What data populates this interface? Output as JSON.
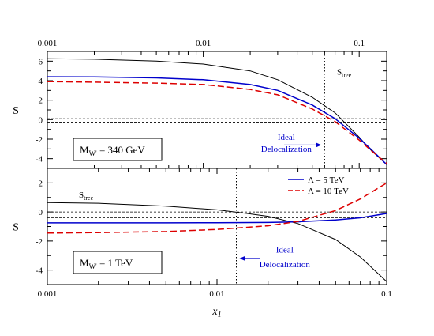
{
  "chart_data": [
    {
      "type": "line",
      "x_scale": "log",
      "xlim": [
        0.001,
        0.15
      ],
      "ylim": [
        -5,
        7
      ],
      "ylabel": "S",
      "xtick_labels": [
        "0.001",
        "0.01",
        "0.1"
      ],
      "ytick_labels": [
        "6",
        "4",
        "2",
        "0",
        "-2",
        "-4"
      ],
      "box_label": {
        "prefix": "M",
        "sub": "W'",
        "suffix": " = 340 GeV"
      },
      "curve_label": {
        "main": "S",
        "sub": "tree"
      },
      "annotation": [
        "Ideal",
        "Delocalization"
      ],
      "ideal_x": 0.06,
      "reference_lines_y": [
        0.1,
        -0.25
      ],
      "series": [
        {
          "x": [
            0.001,
            0.002,
            0.005,
            0.01,
            0.02,
            0.03,
            0.05,
            0.07,
            0.1,
            0.12,
            0.15
          ],
          "y": [
            6.25,
            6.2,
            6.0,
            5.7,
            5.0,
            4.1,
            2.3,
            0.7,
            -1.8,
            -3.2,
            -4.6
          ],
          "color": "#000000",
          "dash": "solid",
          "width": 1
        },
        {
          "x": [
            0.001,
            0.002,
            0.005,
            0.01,
            0.02,
            0.03,
            0.05,
            0.07,
            0.1,
            0.12,
            0.15
          ],
          "y": [
            4.4,
            4.38,
            4.28,
            4.1,
            3.6,
            3.0,
            1.5,
            0.1,
            -1.9,
            -3.1,
            -4.6
          ],
          "color": "#0000cc",
          "dash": "solid",
          "width": 1.5
        },
        {
          "x": [
            0.001,
            0.002,
            0.005,
            0.01,
            0.02,
            0.03,
            0.05,
            0.07,
            0.1,
            0.12,
            0.15
          ],
          "y": [
            3.9,
            3.85,
            3.75,
            3.6,
            3.1,
            2.55,
            1.1,
            -0.2,
            -2.1,
            -3.2,
            -4.5
          ],
          "color": "#dd0000",
          "dash": "dashed",
          "width": 1.5
        }
      ]
    },
    {
      "type": "line",
      "x_scale": "log",
      "xlim": [
        0.001,
        0.1
      ],
      "ylim": [
        -5,
        3
      ],
      "xlabel": {
        "main": "x",
        "sub": "1"
      },
      "ylabel": "S",
      "xtick_labels": [
        "0.001",
        "0.01",
        "0.1"
      ],
      "ytick_labels": [
        "2",
        "0",
        "-2",
        "-4"
      ],
      "box_label": {
        "prefix": "M",
        "sub": "W'",
        "suffix": " = 1 TeV"
      },
      "curve_label": {
        "main": "S",
        "sub": "tree"
      },
      "annotation": [
        "Ideal",
        "Delocalization"
      ],
      "ideal_x": 0.013,
      "reference_lines_y": [
        0.0,
        -0.4
      ],
      "legend": [
        {
          "label": "Λ = 5 TeV",
          "color": "#0000cc",
          "dash": "solid"
        },
        {
          "label": "Λ = 10 TeV",
          "color": "#dd0000",
          "dash": "dashed"
        }
      ],
      "series": [
        {
          "x": [
            0.001,
            0.002,
            0.005,
            0.01,
            0.015,
            0.02,
            0.03,
            0.05,
            0.07,
            0.1
          ],
          "y": [
            0.65,
            0.6,
            0.4,
            0.15,
            -0.1,
            -0.3,
            -0.8,
            -1.9,
            -3.1,
            -4.8
          ],
          "color": "#000000",
          "dash": "solid",
          "width": 1
        },
        {
          "x": [
            0.001,
            0.002,
            0.005,
            0.01,
            0.02,
            0.03,
            0.05,
            0.07,
            0.1
          ],
          "y": [
            -0.75,
            -0.75,
            -0.75,
            -0.74,
            -0.72,
            -0.68,
            -0.55,
            -0.4,
            -0.1
          ],
          "color": "#0000cc",
          "dash": "solid",
          "width": 1.5
        },
        {
          "x": [
            0.001,
            0.002,
            0.005,
            0.01,
            0.02,
            0.03,
            0.05,
            0.07,
            0.1
          ],
          "y": [
            -1.45,
            -1.42,
            -1.35,
            -1.2,
            -0.95,
            -0.65,
            0.1,
            0.9,
            2.0
          ],
          "color": "#dd0000",
          "dash": "dashed",
          "width": 1.5
        }
      ]
    }
  ]
}
